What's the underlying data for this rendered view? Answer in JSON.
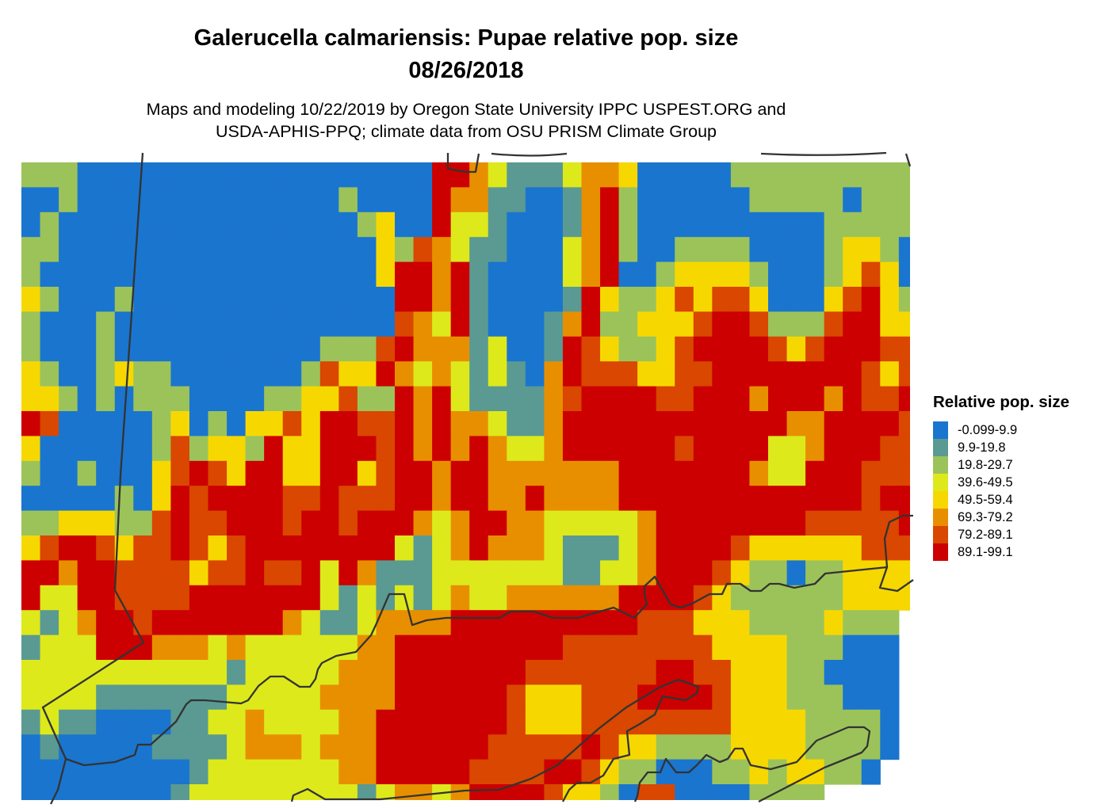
{
  "title": {
    "line1": "Galerucella calmariensis: Pupae relative pop. size",
    "line2": "08/26/2018"
  },
  "subtitle": {
    "line1": "Maps and modeling 10/22/2019 by Oregon State University IPPC USPEST.ORG and",
    "line2": "USDA-APHIS-PPQ; climate data from OSU PRISM Climate Group"
  },
  "legend": {
    "title": "Relative pop. size",
    "items": [
      {
        "label": "-0.099-9.9",
        "color": "#1a75cf"
      },
      {
        "label": "9.9-19.8",
        "color": "#5a9a92"
      },
      {
        "label": "19.8-29.7",
        "color": "#9cc35a"
      },
      {
        "label": "39.6-49.5",
        "color": "#dde91b"
      },
      {
        "label": "49.5-59.4",
        "color": "#f6d800"
      },
      {
        "label": "69.3-79.2",
        "color": "#e88f00"
      },
      {
        "label": "79.2-89.1",
        "color": "#d94700"
      },
      {
        "label": "89.1-99.1",
        "color": "#cc0000"
      }
    ]
  },
  "chart_data": {
    "type": "heatmap",
    "encoding": "rows are run-length encoded legend class indices (0-7, '.' = no data); token 'c:n' = class c repeated n times",
    "rows": [
      "2:3 0:19 7:2 5 3 1:3 3 5:2 4 0:5 2:10",
      "0:2 2 0:14 2 0:4 7 5:2 1:2 0:2 1 5 7 2 0:6 2:5 0 2:3",
      "0 2 0:16 2 4 0:2 7 3:2 1 0:3 1 5 7 2 0:10 2:5",
      "2:2 0:17 4 2 6 5 3 1:2 0:3 3 5 7 2 0:2 2:4 0:4 2 4:2 2 0",
      "2 0:18 4 7:2 5 7 1 0:4 3 5 7 0:2 2 4:4 2 0:3 2 4 6 4 0",
      "4 2 0:3 2 0:14 7:2 5 7 1 0:4 1 7 4 2:2 4 6 4 6:2 4 0:3 4 6 7 4 2",
      "2 0:3 2 0:15 6 5 3 7 1 0:3 1 5 7 2:2 4:3 6 7:2 6 2:3 6 7:2 4:2",
      "2 0:3 2 0:11 2:3 6 7 5:3 1 3 0:2 1 7 6 4 2:2 4 6 7:4 6 4 6 7:3 6:2",
      "4 2 0:2 2 4 2:2 0:7 2 6 4:2 7 5 3 5 3 1 3 1 0 5 7 6:3 4:2 6:2 7:8 6 4 6",
      "4:2 2 0 2 0 2:3 0:4 2:2 4:2 6 2:2 7 5 7 3 1:4 5 6 7:4 6:2 7:3 5 7:3 5 7 6:2 7",
      "7 6 0:5 2 4 0 2 0 4:2 6 4 7:2 6:2 7 5 7 5:2 3 1:2 5 7:12 5:2 7:4 6",
      "4 0:6 2 6 2 4:2 2 7 4:2 7:3 6 7 5 7 5 7 5 3:2 5 7:6 6 7:4 3:2 5 7:3 6:2",
      "2 0:2 2 0:3 4 6 7 6 4 7:2 4:2 7:2 4 6 7:2 5 7:2 5:7 7:7 5 3:2 7:3 6:3",
      "0:5 2 0 4 7 6 7:4 6:2 7 6:3 7:2 5 7:2 5:2 7 5:4 7:13 6 7:2",
      "2:2 4:3 2:2 6 7 6:2 7:3 6 7:2 6 7:3 5 3 5 7:2 5:2 3:5 5 7:8 6:5 7",
      "4 6 7:2 6 4 6:2 7 6 4 6 7:8 3 1 3 5 7 5:3 3 1:3 3 5 7:4 6 4:6 6:3",
      "7:2 5 7:2 6:4 4 6:2 7 6:2 7 3 7 5 1:3 3:7 1:2 3:2 5 7:3 6 4 2:2 0 2:2 4:4",
      "7 3:2 7:2 6:4 7:7 3 1 3 1 3 1 3 5 3:2 5:6 7:4 6 4 2:6 4:4",
      "3 1 3 5 7:2 6 7:7 5 3 1:2 3 5:4 7:10 6:3 4:3 2:4 4 2:3 .",
      "1 3:3 7:3 5:3 3 5 3:6 5:2 7:9 6:8 4:4 2:3 0:3 .",
      "3:11 1 3:5 5:3 7:7 6:7 7:2 6:2 4:3 2:2 0:4 .",
      "3:4 1:7 3:5 5:4 7:6 6 4:3 6:3 7:4 6 4:3 2:3 0:3 .",
      "1 3 1:2 0:4 1:2 3:2 5 3:4 5:2 7:7 6 4:3 6:8 4:4 2:4 0 .",
      "0 1 0:5 1:4 3 5:3 3 5:3 7:6 6:5 7 6 4:2 2:4 4:4 2:4 0 .",
      "0:9 1 3:7 5:2 7:5 6:4 7:2 6 4 2:2 0:3 2:2 4 2 4:2 2:2 0 .:2",
      "0:8 1 3:9 1 3 5:2 3 5 7:4 6 4:2 2 0 6:2 0:4 2:4 .:5"
    ],
    "boundary_color": "#333333"
  }
}
